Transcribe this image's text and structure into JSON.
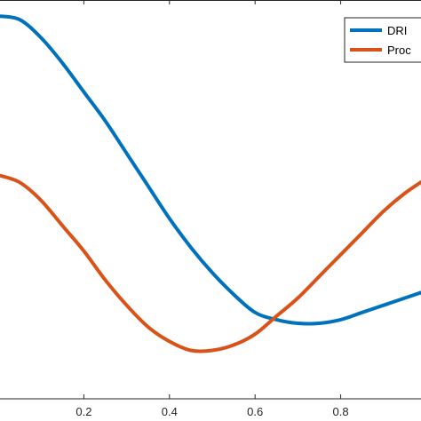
{
  "chart_data": {
    "type": "line",
    "title": "",
    "xlabel": "",
    "ylabel": "",
    "xlim": [
      0,
      1
    ],
    "ylim": [
      0,
      1
    ],
    "grid": false,
    "x_ticks": [
      {
        "value": 0.2,
        "label": "0.2"
      },
      {
        "value": 0.4,
        "label": "0.4"
      },
      {
        "value": 0.6,
        "label": "0.6"
      },
      {
        "value": 0.8,
        "label": "0.8"
      }
    ],
    "legend": {
      "position": "top-right"
    },
    "series": [
      {
        "name": "DRI",
        "color": "#0072bd",
        "x": [
          0,
          0.05,
          0.1,
          0.15,
          0.2,
          0.25,
          0.3,
          0.35,
          0.4,
          0.45,
          0.5,
          0.55,
          0.6,
          0.65,
          0.7,
          0.75,
          0.8,
          0.85,
          0.9,
          0.95,
          1.0
        ],
        "y": [
          0.99,
          0.98,
          0.93,
          0.86,
          0.78,
          0.7,
          0.61,
          0.52,
          0.43,
          0.35,
          0.28,
          0.22,
          0.17,
          0.15,
          0.14,
          0.14,
          0.15,
          0.17,
          0.19,
          0.21,
          0.23
        ]
      },
      {
        "name": "Proc",
        "color": "#d95319",
        "x": [
          0,
          0.05,
          0.1,
          0.15,
          0.2,
          0.25,
          0.3,
          0.35,
          0.4,
          0.45,
          0.5,
          0.55,
          0.6,
          0.65,
          0.7,
          0.75,
          0.8,
          0.85,
          0.9,
          0.95,
          1.0
        ],
        "y": [
          0.55,
          0.53,
          0.48,
          0.41,
          0.34,
          0.26,
          0.19,
          0.13,
          0.09,
          0.065,
          0.065,
          0.08,
          0.11,
          0.16,
          0.21,
          0.27,
          0.33,
          0.39,
          0.45,
          0.5,
          0.54
        ]
      }
    ]
  }
}
